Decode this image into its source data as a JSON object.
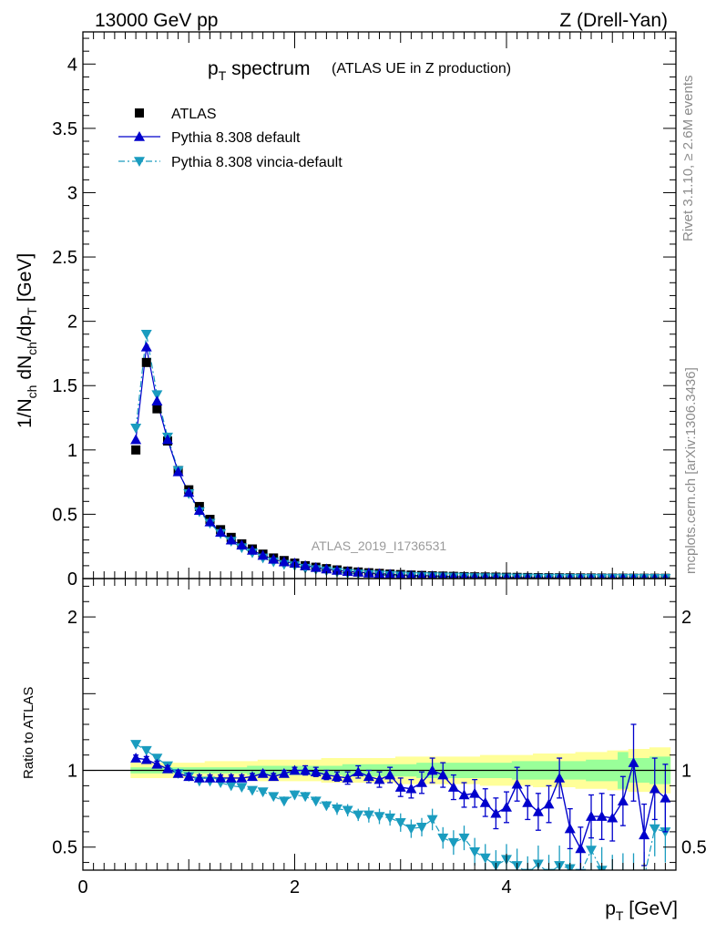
{
  "header": {
    "left": "13000 GeV pp",
    "right": "Z (Drell-Yan)"
  },
  "title": {
    "main": "p",
    "main_sub": "T",
    "main_rest": " spectrum",
    "sub": "(ATLAS UE in Z production)"
  },
  "side_labels": {
    "rivet": "Rivet 3.1.10, ≥ 2.6M events",
    "mcplots": "mcplots.cern.ch [arXiv:1306.3436]"
  },
  "watermark": "ATLAS_2019_I1736531",
  "colors": {
    "atlas": "#000000",
    "default": "#0000cc",
    "vincia": "#1a9cbf",
    "band_inner": "#99ff99",
    "band_outer": "#ffff99"
  },
  "chart_data": [
    {
      "type": "line",
      "panel": "main",
      "ylabel": "1/N_ch dN_ch/dp_T [GeV]",
      "ylim": [
        0,
        4.25
      ],
      "yticks": [
        "0",
        "0.5",
        "1",
        "1.5",
        "2",
        "2.5",
        "3",
        "3.5",
        "4"
      ],
      "legend_position": "top-left",
      "x": [
        0.5,
        0.6,
        0.7,
        0.8,
        0.9,
        1.0,
        1.1,
        1.2,
        1.3,
        1.4,
        1.5,
        1.6,
        1.7,
        1.8,
        1.9,
        2.0,
        2.1,
        2.2,
        2.3,
        2.4,
        2.5,
        2.6,
        2.7,
        2.8,
        2.9,
        3.0,
        3.1,
        3.2,
        3.3,
        3.4,
        3.5,
        3.6,
        3.7,
        3.8,
        3.9,
        4.0,
        4.1,
        4.2,
        4.3,
        4.4,
        4.5,
        4.6,
        4.7,
        4.8,
        4.9,
        5.0,
        5.1,
        5.2,
        5.3,
        5.4,
        5.5
      ],
      "series": [
        {
          "name": "ATLAS",
          "marker": "square",
          "values": [
            1.0,
            1.68,
            1.32,
            1.07,
            0.84,
            0.69,
            0.56,
            0.46,
            0.38,
            0.32,
            0.27,
            0.23,
            0.19,
            0.16,
            0.14,
            0.12,
            0.1,
            0.088,
            0.077,
            0.067,
            0.058,
            0.051,
            0.045,
            0.04,
            0.035,
            0.031,
            0.027,
            0.024,
            0.021,
            0.019,
            0.017,
            0.015,
            0.013,
            0.012,
            0.011,
            0.01,
            0.009,
            0.008,
            0.007,
            0.0065,
            0.006,
            0.0055,
            0.005,
            0.0045,
            0.004,
            0.0036,
            0.0033,
            0.003,
            0.0027,
            0.0025,
            0.0022
          ]
        },
        {
          "name": "Pythia 8.308 default",
          "marker": "triangle-up",
          "line": "solid",
          "values": [
            1.08,
            1.8,
            1.38,
            1.08,
            0.83,
            0.67,
            0.53,
            0.44,
            0.36,
            0.3,
            0.26,
            0.22,
            0.18,
            0.15,
            0.13,
            0.12,
            0.1,
            0.086,
            0.075,
            0.064,
            0.055,
            0.05,
            0.043,
            0.038,
            0.034,
            0.028,
            0.025,
            0.022,
            0.021,
            0.018,
            0.015,
            0.013,
            0.011,
            0.01,
            0.01,
            0.008,
            0.008,
            0.007,
            0.006,
            0.005,
            0.005,
            0.004,
            0.004,
            0.003,
            0.003,
            0.003,
            0.0035,
            0.0025,
            0.002,
            0.002,
            0.0018
          ]
        },
        {
          "name": "Pythia 8.308 vincia-default",
          "marker": "triangle-down",
          "line": "dash-dot",
          "values": [
            1.17,
            1.9,
            1.43,
            1.1,
            0.84,
            0.66,
            0.52,
            0.43,
            0.35,
            0.29,
            0.24,
            0.2,
            0.16,
            0.13,
            0.11,
            0.1,
            0.08,
            0.07,
            0.06,
            0.05,
            0.04,
            0.036,
            0.032,
            0.028,
            0.024,
            0.021,
            0.017,
            0.016,
            0.015,
            0.013,
            0.011,
            0.01,
            0.008,
            0.007,
            0.006,
            0.005,
            0.004,
            0.004,
            0.003,
            0.003,
            0.003,
            0.002,
            0.002,
            0.002,
            0.002,
            0.002,
            0.002,
            0.002,
            0.002,
            0.001,
            0.001
          ]
        }
      ]
    },
    {
      "type": "line",
      "panel": "ratio",
      "xlabel": "p_T [GeV]",
      "ylabel": "Ratio to ATLAS",
      "xlim": [
        0,
        5.6
      ],
      "ylim": [
        0.35,
        2.25
      ],
      "xticks": [
        "0",
        "2",
        "4"
      ],
      "yticks": [
        "0.5",
        "1",
        "2"
      ],
      "x": [
        0.5,
        0.6,
        0.7,
        0.8,
        0.9,
        1.0,
        1.1,
        1.2,
        1.3,
        1.4,
        1.5,
        1.6,
        1.7,
        1.8,
        1.9,
        2.0,
        2.1,
        2.2,
        2.3,
        2.4,
        2.5,
        2.6,
        2.7,
        2.8,
        2.9,
        3.0,
        3.1,
        3.2,
        3.3,
        3.4,
        3.5,
        3.6,
        3.7,
        3.8,
        3.9,
        4.0,
        4.1,
        4.2,
        4.3,
        4.4,
        4.5,
        4.6,
        4.7,
        4.8,
        4.9,
        5.0,
        5.1,
        5.2,
        5.3,
        5.4,
        5.5
      ],
      "band_inner": [
        0.02,
        0.02,
        0.02,
        0.02,
        0.02,
        0.02,
        0.02,
        0.02,
        0.02,
        0.02,
        0.02,
        0.03,
        0.03,
        0.03,
        0.03,
        0.03,
        0.03,
        0.03,
        0.03,
        0.03,
        0.04,
        0.04,
        0.04,
        0.04,
        0.04,
        0.04,
        0.04,
        0.05,
        0.05,
        0.05,
        0.05,
        0.05,
        0.05,
        0.05,
        0.05,
        0.05,
        0.06,
        0.06,
        0.06,
        0.06,
        0.06,
        0.06,
        0.06,
        0.07,
        0.07,
        0.07,
        0.12,
        0.08,
        0.08,
        0.09,
        0.09
      ],
      "band_outer": [
        0.05,
        0.05,
        0.05,
        0.05,
        0.05,
        0.05,
        0.05,
        0.06,
        0.06,
        0.06,
        0.06,
        0.06,
        0.07,
        0.07,
        0.07,
        0.07,
        0.07,
        0.07,
        0.08,
        0.08,
        0.08,
        0.08,
        0.08,
        0.08,
        0.08,
        0.09,
        0.09,
        0.09,
        0.09,
        0.09,
        0.09,
        0.09,
        0.09,
        0.1,
        0.1,
        0.1,
        0.1,
        0.1,
        0.11,
        0.11,
        0.11,
        0.11,
        0.12,
        0.12,
        0.12,
        0.13,
        0.13,
        0.14,
        0.14,
        0.15,
        0.15
      ],
      "series": [
        {
          "name": "Pythia 8.308 default",
          "values": [
            1.08,
            1.07,
            1.04,
            1.01,
            0.98,
            0.96,
            0.95,
            0.95,
            0.95,
            0.95,
            0.95,
            0.96,
            0.98,
            0.96,
            0.98,
            1.0,
            1.0,
            0.99,
            0.97,
            0.96,
            0.95,
            0.99,
            0.96,
            0.94,
            0.97,
            0.89,
            0.88,
            0.92,
            1.0,
            0.97,
            0.89,
            0.84,
            0.85,
            0.79,
            0.72,
            0.76,
            0.91,
            0.79,
            0.73,
            0.78,
            0.95,
            0.62,
            0.49,
            0.7,
            0.7,
            0.69,
            0.8,
            1.05,
            0.58,
            0.88,
            0.82
          ],
          "errors": [
            0.02,
            0.02,
            0.02,
            0.02,
            0.02,
            0.02,
            0.02,
            0.02,
            0.02,
            0.02,
            0.02,
            0.02,
            0.02,
            0.02,
            0.02,
            0.02,
            0.03,
            0.03,
            0.03,
            0.03,
            0.04,
            0.04,
            0.04,
            0.05,
            0.05,
            0.06,
            0.06,
            0.07,
            0.08,
            0.08,
            0.08,
            0.08,
            0.09,
            0.09,
            0.1,
            0.1,
            0.11,
            0.11,
            0.12,
            0.12,
            0.13,
            0.13,
            0.14,
            0.14,
            0.15,
            0.15,
            0.16,
            0.25,
            0.2,
            0.2,
            0.22
          ]
        },
        {
          "name": "Pythia 8.308 vincia-default",
          "values": [
            1.17,
            1.13,
            1.08,
            1.03,
            0.98,
            0.96,
            0.93,
            0.93,
            0.92,
            0.9,
            0.89,
            0.87,
            0.86,
            0.83,
            0.8,
            0.84,
            0.83,
            0.8,
            0.77,
            0.75,
            0.74,
            0.71,
            0.71,
            0.7,
            0.69,
            0.66,
            0.62,
            0.63,
            0.68,
            0.56,
            0.53,
            0.56,
            0.47,
            0.43,
            0.38,
            0.42,
            0.38,
            0.33,
            0.39,
            0.33,
            0.38,
            0.36,
            0.33,
            0.48,
            0.35,
            0.3,
            0.3,
            0.3,
            0.3,
            0.62,
            0.6
          ],
          "errors": [
            0.02,
            0.02,
            0.02,
            0.02,
            0.02,
            0.02,
            0.02,
            0.02,
            0.02,
            0.02,
            0.02,
            0.02,
            0.02,
            0.02,
            0.03,
            0.03,
            0.03,
            0.03,
            0.03,
            0.04,
            0.04,
            0.04,
            0.05,
            0.05,
            0.05,
            0.06,
            0.06,
            0.06,
            0.07,
            0.07,
            0.08,
            0.08,
            0.09,
            0.09,
            0.1,
            0.1,
            0.11,
            0.11,
            0.12,
            0.12,
            0.13,
            0.13,
            0.14,
            0.14,
            0.15,
            0.15,
            0.16,
            0.16,
            0.17,
            0.18,
            0.2
          ]
        }
      ]
    }
  ]
}
